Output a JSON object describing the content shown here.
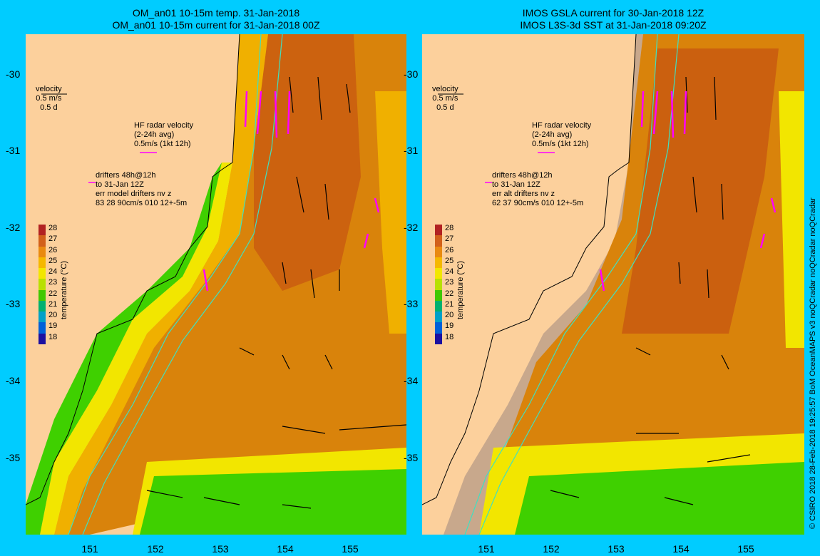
{
  "titles": {
    "left_line1": "OM_an01 10-15m temp. 31-Jan-2018",
    "left_line2": "OM_an01 10-15m current for 31-Jan-2018 00Z",
    "right_line1": "IMOS GSLA current for 30-Jan-2018 12Z",
    "right_line2": "IMOS L3S-3d SST at 31-Jan-2018 09:20Z"
  },
  "y_ticks": [
    "-30",
    "-31",
    "-32",
    "-33",
    "-34",
    "-35"
  ],
  "x_ticks": [
    "151",
    "152",
    "153",
    "154",
    "155"
  ],
  "velocity_legend": {
    "line1": "velocity",
    "line2": "0.5 m/s",
    "line3": "0.5 d"
  },
  "hf_legend": {
    "line1": "HF radar velocity",
    "line2": "(2-24h avg)",
    "line3": "0.5m/s (1kt 12h)"
  },
  "drifters_left": {
    "line1": "drifters 48h@12h",
    "line2": "to 31-Jan 12Z",
    "line3": "err model drifters nv z",
    "line4": "83 28 90cm/s 010 12+-5m"
  },
  "drifters_right": {
    "line1": "drifters 48h@12h",
    "line2": "to 31-Jan 12Z",
    "line3": "err alt drifters nv z",
    "line4": "62 37 90cm/s 010 12+-5m"
  },
  "colorbar": {
    "title": "temperature (°C)",
    "labels": [
      "28",
      "27",
      "26",
      "25",
      "24",
      "23",
      "22",
      "21",
      "20",
      "19",
      "18"
    ],
    "colors": [
      "#b22222",
      "#d2601a",
      "#e98a10",
      "#f5b800",
      "#f2e600",
      "#b8e000",
      "#40c800",
      "#00b070",
      "#00a0c8",
      "#0060d8",
      "#1c10a0"
    ]
  },
  "credit": "© CSIRO 2018   28-Feb-2018 19:25:57 BoM OceanMAPS v3 noQCradar noQCradar noQCradar",
  "colors": {
    "background": "#00ccff",
    "land": "#fcd09c",
    "warm": "#d9830b",
    "hot": "#c85a10",
    "mid": "#f0b000",
    "yellow": "#f2e600",
    "green": "#3fd000",
    "cloud": "#c8a88c",
    "hf_radar": "#ff00ff",
    "isobath": "#40e0c0"
  }
}
